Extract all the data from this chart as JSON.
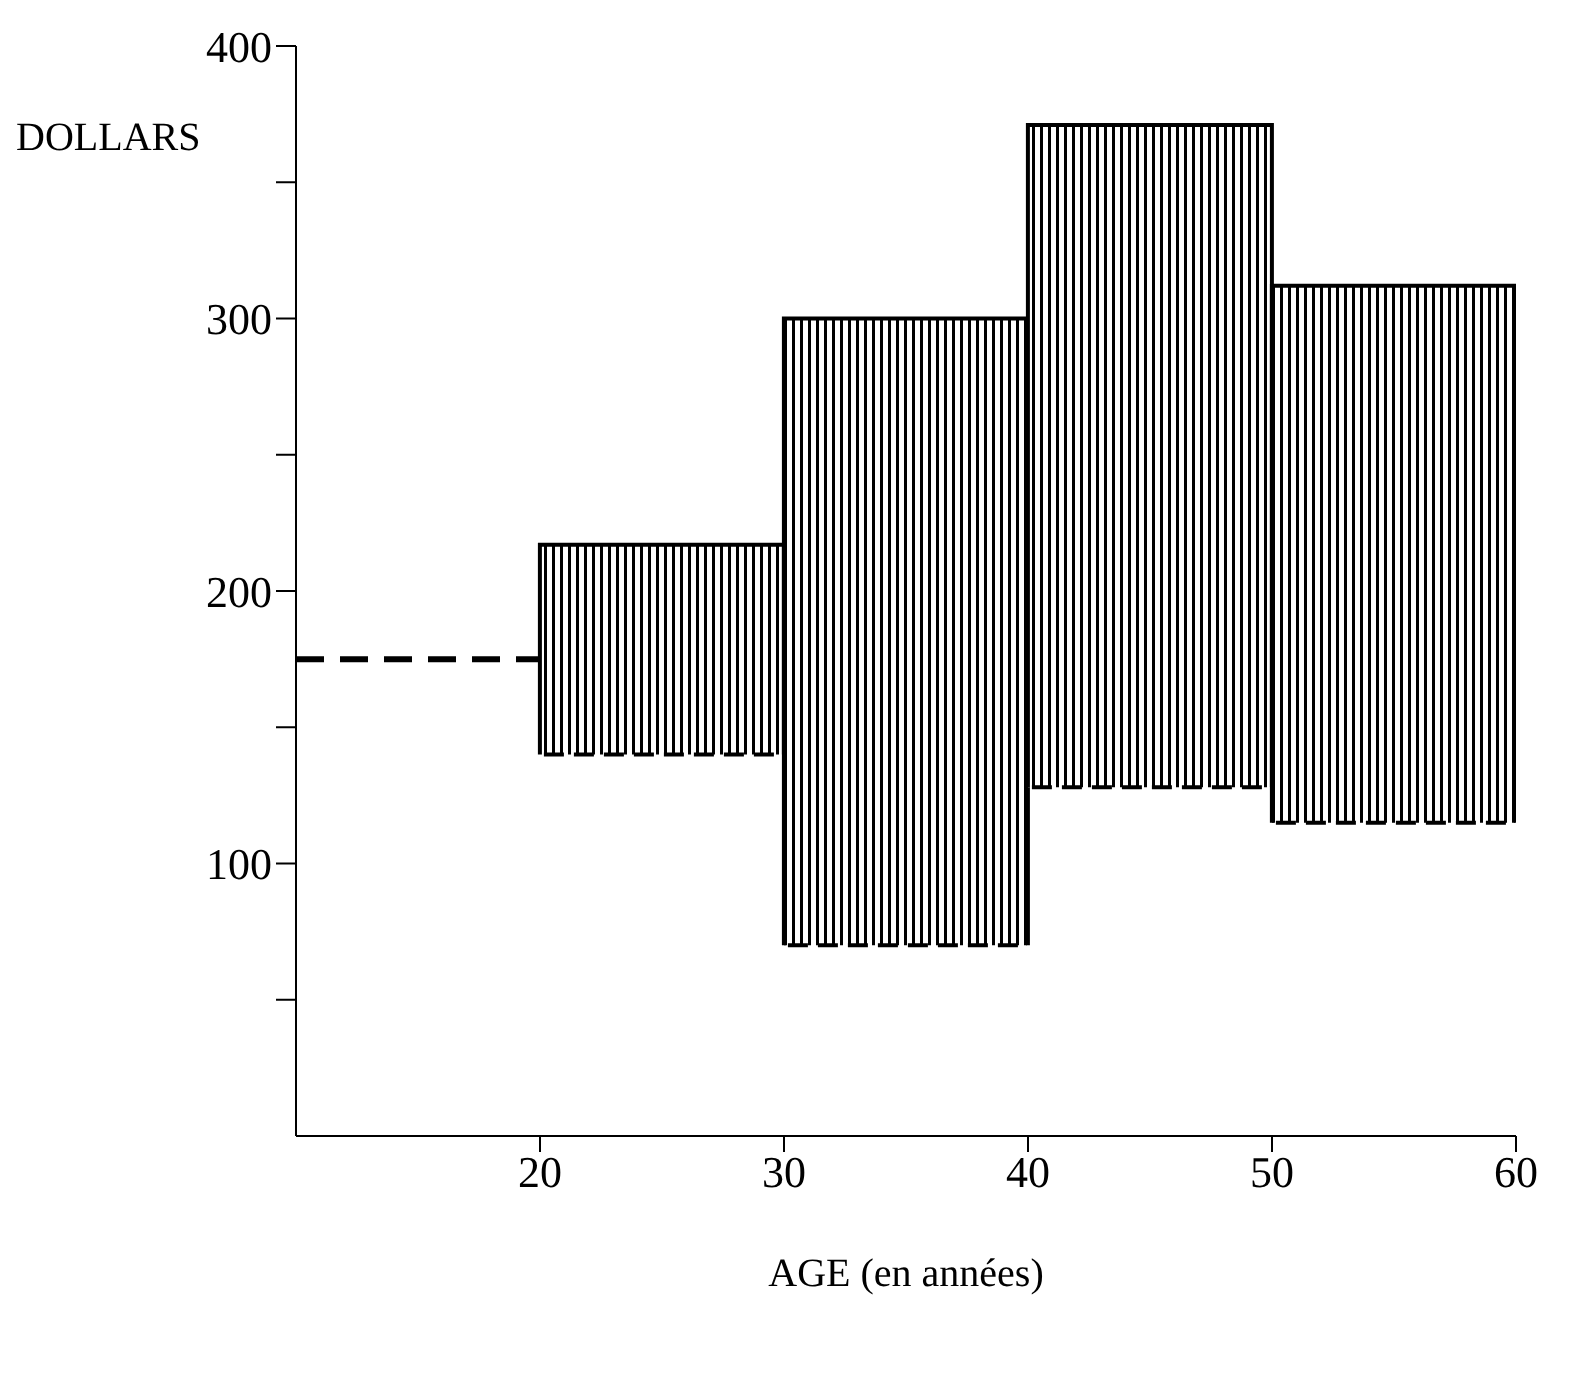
{
  "chart_data": {
    "type": "bar",
    "ylabel": "DOLLARS",
    "xlabel": "AGE  (en années)",
    "x": [
      25,
      35,
      45,
      55
    ],
    "base": [
      140,
      70,
      128,
      115
    ],
    "values": [
      77,
      230,
      243,
      197
    ],
    "color": "#000000",
    "series": [
      {
        "type": "line",
        "x": [
          10,
          20
        ],
        "values": [
          175,
          175
        ],
        "color": "#000000",
        "line_style": "dashed"
      }
    ],
    "xlim": [
      10,
      60
    ],
    "xticks": [
      20,
      30,
      40,
      50,
      60
    ],
    "ylim": [
      0,
      400
    ],
    "yticks": [
      {
        "value": 50,
        "label": null
      },
      100,
      {
        "value": 150,
        "label": null
      },
      200,
      {
        "value": 250,
        "label": null
      },
      300,
      {
        "value": 350,
        "label": null
      },
      400
    ],
    "grid": false,
    "legend": false
  }
}
